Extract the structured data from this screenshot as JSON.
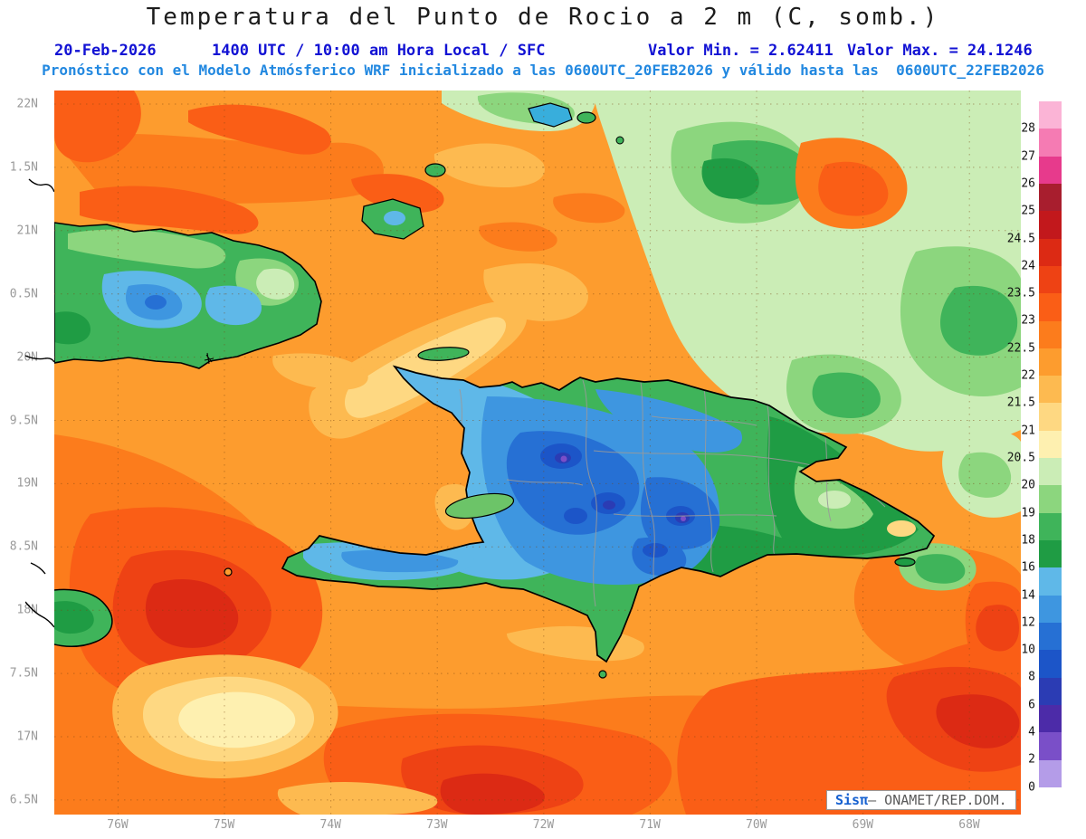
{
  "header": {
    "title": "Temperatura del Punto de Rocio a 2 m (C, somb.)",
    "line2": {
      "date": "20-Feb-2026",
      "time": "1400 UTC / 10:00 am Hora Local / SFC",
      "min": "Valor Min. = 2.62411",
      "max": "Valor Max. = 24.1246"
    },
    "line3": "Pronóstico con el Modelo Atmósferico WRF inicializado a las 0600UTC_20FEB2026 y válido hasta las  0600UTC_22FEB2026"
  },
  "map": {
    "lat_labels": [
      "22N",
      "1.5N",
      "21N",
      "0.5N",
      "20N",
      "9.5N",
      "19N",
      "8.5N",
      "18N",
      "7.5N",
      "17N",
      "6.5N"
    ],
    "lon_labels": [
      "76W",
      "75W",
      "74W",
      "73W",
      "72W",
      "71W",
      "70W",
      "69W",
      "68W"
    ]
  },
  "colorbar": {
    "labels": [
      "28",
      "27",
      "26",
      "25",
      "24.5",
      "24",
      "23.5",
      "23",
      "22.5",
      "22",
      "21.5",
      "21",
      "20.5",
      "20",
      "19",
      "18",
      "16",
      "14",
      "12",
      "10",
      "8",
      "6",
      "4",
      "2",
      "0"
    ],
    "segments": [
      "#FBB4D6",
      "#F57BB3",
      "#E73A8C",
      "#A81E2E",
      "#C2181C",
      "#DC2A14",
      "#EE4214",
      "#FA5E16",
      "#FC7C1C",
      "#FD9C2E",
      "#FDBA50",
      "#FED882",
      "#FEF0B0",
      "#CBEDB6",
      "#8CD67E",
      "#3FB45A",
      "#1F9C44",
      "#5FB8E8",
      "#3E96E0",
      "#2670D4",
      "#1C55C8",
      "#2B3CB4",
      "#4C2BA8",
      "#7A4FC8",
      "#B49CE8",
      "#FFFFFF"
    ]
  },
  "watermark": {
    "brand": "Sisπ",
    "rest": "– ONAMET/REP.DOM."
  }
}
